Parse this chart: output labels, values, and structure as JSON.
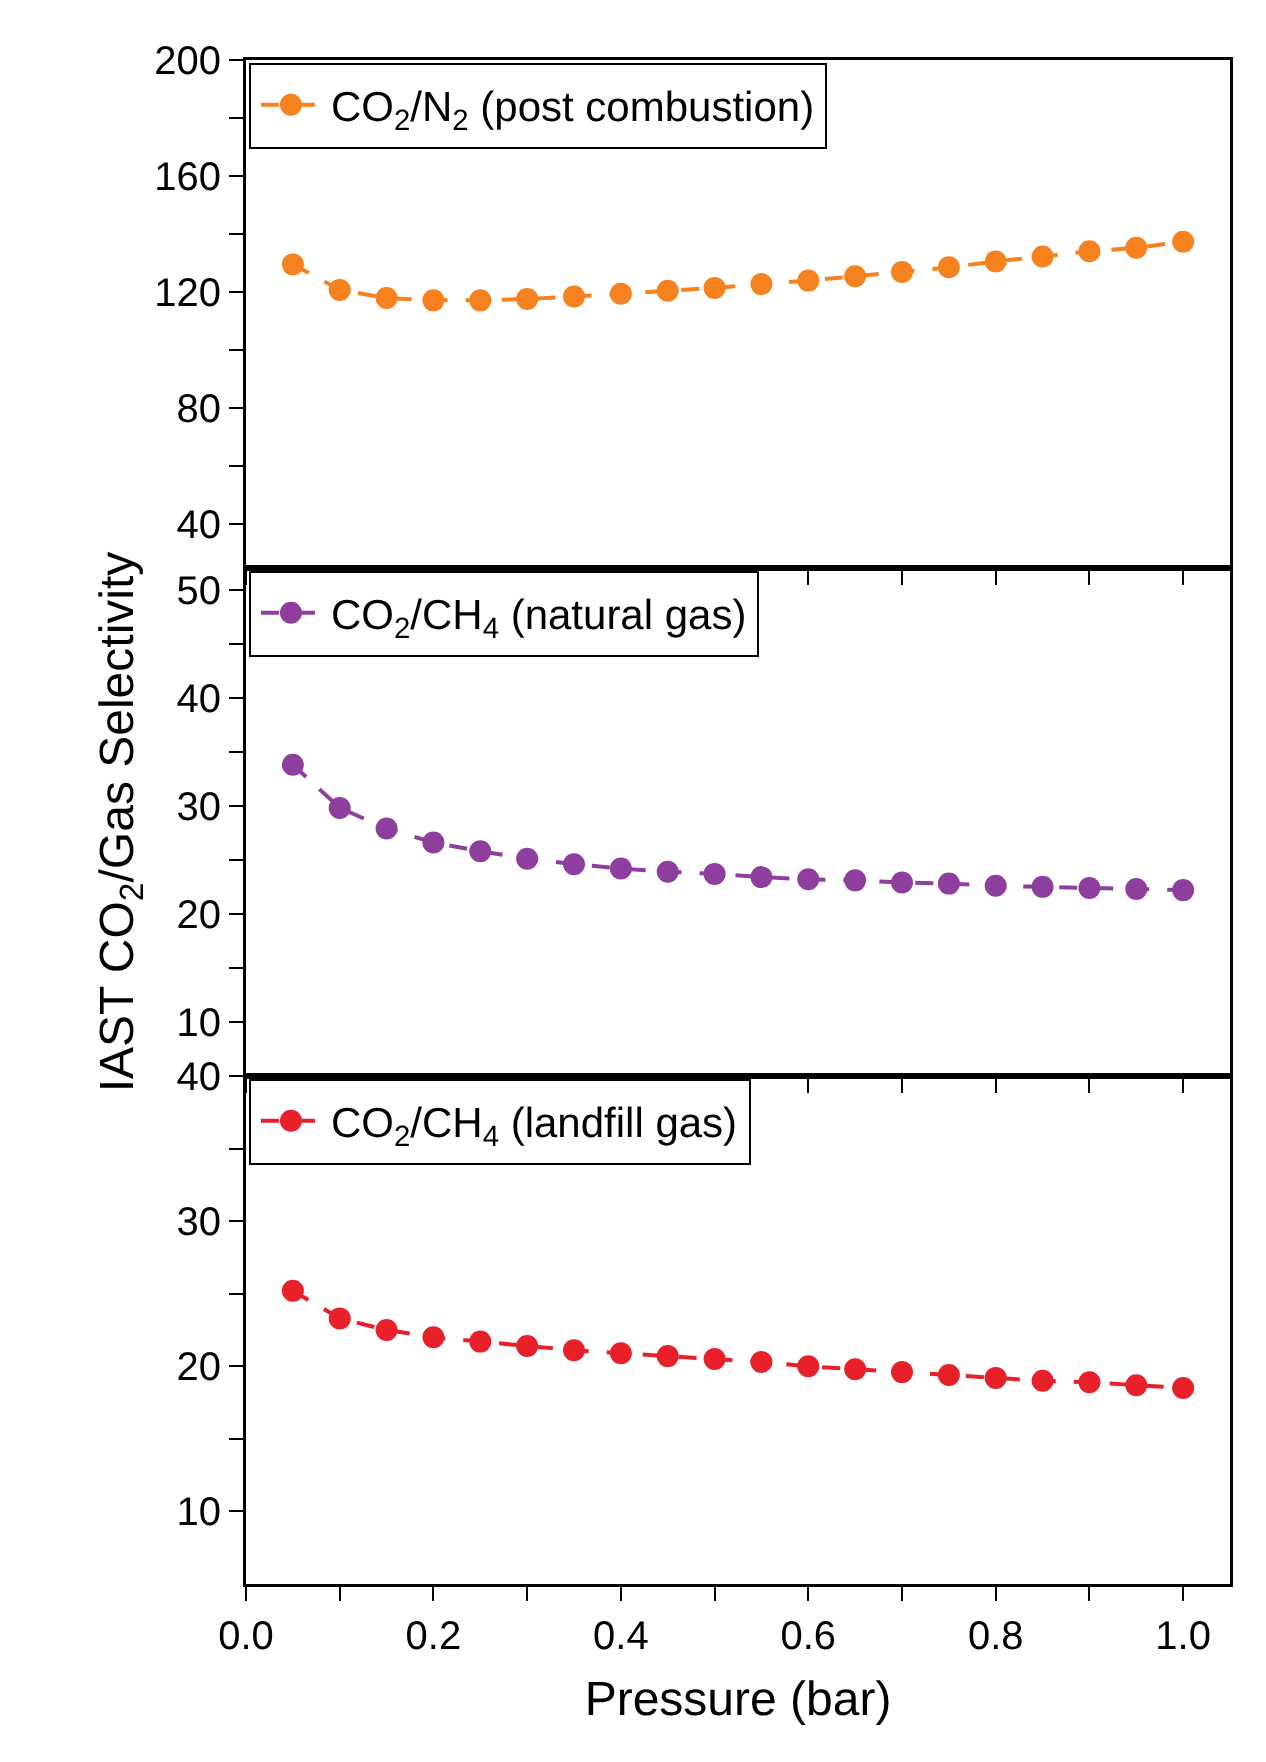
{
  "chart_data": [
    {
      "type": "line",
      "ylim": [
        25,
        200
      ],
      "yticks": [
        40,
        {
          "value": 60,
          "label": null
        },
        80,
        {
          "value": 100,
          "label": null
        },
        120,
        {
          "value": 140,
          "label": null
        },
        160,
        {
          "value": 180,
          "label": null
        },
        200
      ],
      "xlim": [
        0,
        1.05
      ],
      "xticks": [
        0,
        0.1,
        0.2,
        0.3,
        0.4,
        0.5,
        0.6,
        0.7,
        0.8,
        0.9,
        1.0
      ],
      "tick_labels": "y",
      "x": [
        0.05,
        0.1,
        0.15,
        0.2,
        0.25,
        0.3,
        0.35,
        0.4,
        0.45,
        0.5,
        0.55,
        0.6,
        0.65,
        0.7,
        0.75,
        0.8,
        0.85,
        0.9,
        0.95,
        1.0
      ],
      "legend": "top left",
      "marker": "circle",
      "line_style": "dashed",
      "grid": false,
      "series": [
        {
          "name": "CO$_{2}$/N$_{2}$ (post combustion)",
          "color": "#f5821f",
          "values": [
            129.6,
            120.8,
            118,
            117.2,
            117.2,
            117.7,
            118.5,
            119.5,
            120.5,
            121.5,
            122.8,
            124,
            125.5,
            127,
            128.6,
            130.6,
            132.3,
            134.1,
            135.3,
            137.4
          ]
        }
      ]
    },
    {
      "type": "line",
      "ylabel": "IAST CO$_{2}$/Gas Selectivity",
      "ylim": [
        5,
        52
      ],
      "yticks": [
        10,
        {
          "value": 15,
          "label": null
        },
        20,
        {
          "value": 25,
          "label": null
        },
        30,
        {
          "value": 35,
          "label": null
        },
        40,
        {
          "value": 45,
          "label": null
        },
        50
      ],
      "xlim": [
        0,
        1.05
      ],
      "xticks": [
        0,
        0.1,
        0.2,
        0.3,
        0.4,
        0.5,
        0.6,
        0.7,
        0.8,
        0.9,
        1.0
      ],
      "tick_labels": "y",
      "x": [
        0.05,
        0.1,
        0.15,
        0.2,
        0.25,
        0.3,
        0.35,
        0.4,
        0.45,
        0.5,
        0.55,
        0.6,
        0.65,
        0.7,
        0.75,
        0.8,
        0.85,
        0.9,
        0.95,
        1.0
      ],
      "legend": "top left",
      "marker": "circle",
      "line_style": "dashed",
      "grid": false,
      "series": [
        {
          "name": "CO$_{2}$/CH$_{4}$ (natural gas)",
          "color": "#8e3f9e",
          "values": [
            33.8,
            29.8,
            27.9,
            26.6,
            25.8,
            25.1,
            24.6,
            24.2,
            23.9,
            23.7,
            23.4,
            23.2,
            23.1,
            22.9,
            22.8,
            22.6,
            22.5,
            22.4,
            22.3,
            22.2
          ]
        }
      ]
    },
    {
      "type": "line",
      "xlabel": "Pressure (bar)",
      "ylim": [
        5,
        40
      ],
      "yticks": [
        10,
        {
          "value": 15,
          "label": null
        },
        20,
        {
          "value": 25,
          "label": null
        },
        30,
        {
          "value": 35,
          "label": null
        },
        40
      ],
      "xlim": [
        0,
        1.05
      ],
      "xticks": [
        "0.0",
        {
          "value": 0.1,
          "label": null
        },
        0.2,
        {
          "value": 0.3,
          "label": null
        },
        0.4,
        {
          "value": 0.5,
          "label": null
        },
        0.6,
        {
          "value": 0.7,
          "label": null
        },
        0.8,
        {
          "value": 0.9,
          "label": null
        },
        "1.0"
      ],
      "x": [
        0.05,
        0.1,
        0.15,
        0.2,
        0.25,
        0.3,
        0.35,
        0.4,
        0.45,
        0.5,
        0.55,
        0.6,
        0.65,
        0.7,
        0.75,
        0.8,
        0.85,
        0.9,
        0.95,
        1.0
      ],
      "legend": "top left",
      "marker": "circle",
      "line_style": "dashed",
      "grid": false,
      "series": [
        {
          "name": "CO$_{2}$/CH$_{4}$ (landfill gas)",
          "color": "#e8202a",
          "values": [
            25.2,
            23.3,
            22.5,
            22.0,
            21.7,
            21.4,
            21.1,
            20.9,
            20.7,
            20.5,
            20.3,
            20.0,
            19.8,
            19.6,
            19.4,
            19.2,
            19.0,
            18.9,
            18.7,
            18.5
          ]
        }
      ]
    }
  ]
}
